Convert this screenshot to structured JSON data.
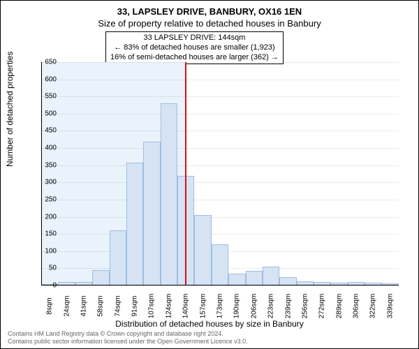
{
  "title": "33, LAPSLEY DRIVE, BANBURY, OX16 1EN",
  "subtitle": "Size of property relative to detached houses in Banbury",
  "annotation": {
    "line1": "33 LAPSLEY DRIVE: 144sqm",
    "line2": "← 83% of detached houses are smaller (1,923)",
    "line3": "16% of semi-detached houses are larger (362) →"
  },
  "ylabel": "Number of detached properties",
  "xlabel": "Distribution of detached houses by size in Banbury",
  "footer_l1": "Contains HM Land Registry data © Crown copyright and database right 2024.",
  "footer_l2": "Contains public sector information licensed under the Open Government Licence v3.0.",
  "chart": {
    "type": "histogram",
    "shaded_background": "#eaf2fb",
    "bar_fill": "#d5e3f5",
    "bar_stroke": "#9fbde0",
    "marker_color": "#d21212",
    "grid_color": "rgba(0,0,0,0.08)",
    "ylim": [
      0,
      650
    ],
    "ytick_step": 50,
    "x_categories": [
      "8sqm",
      "24sqm",
      "41sqm",
      "58sqm",
      "74sqm",
      "91sqm",
      "107sqm",
      "124sqm",
      "140sqm",
      "157sqm",
      "173sqm",
      "190sqm",
      "206sqm",
      "223sqm",
      "239sqm",
      "256sqm",
      "272sqm",
      "289sqm",
      "306sqm",
      "322sqm",
      "339sqm"
    ],
    "values": [
      0,
      10,
      10,
      45,
      160,
      358,
      418,
      530,
      318,
      205,
      120,
      35,
      42,
      55,
      25,
      12,
      10,
      8,
      10,
      8,
      7
    ],
    "marker_index": 8,
    "bar_width_ratio": 1.0
  }
}
